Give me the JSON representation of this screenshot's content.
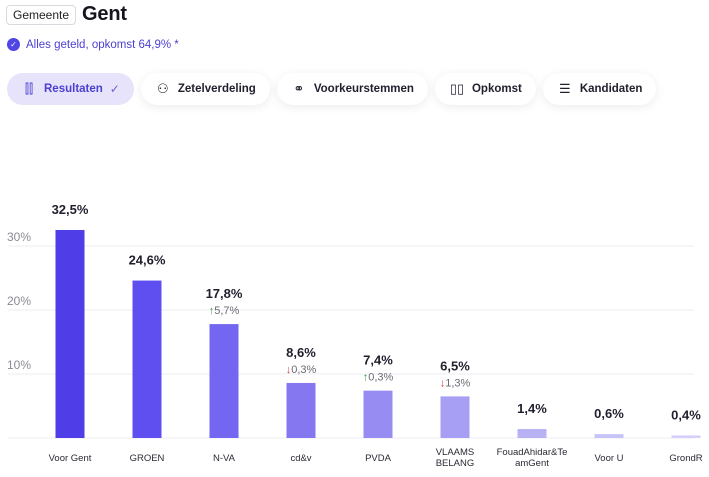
{
  "header": {
    "badge": "Gemeente",
    "title": "Gent"
  },
  "status": {
    "text": "Alles geteld, opkomst 64,9% *"
  },
  "tabs": [
    {
      "label": "Resultaten",
      "icon": "bar-chart-icon",
      "glyph": "⫿⫿",
      "active": true,
      "check": "✓"
    },
    {
      "label": "Zetelverdeling",
      "icon": "seats-icon",
      "glyph": "⚇",
      "active": false
    },
    {
      "label": "Voorkeurstemmen",
      "icon": "people-icon",
      "glyph": "⚭",
      "active": false
    },
    {
      "label": "Opkomst",
      "icon": "map-icon",
      "glyph": "▯▯",
      "active": false
    },
    {
      "label": "Kandidaten",
      "icon": "list-icon",
      "glyph": "☰",
      "active": false
    }
  ],
  "chart_data": {
    "type": "bar",
    "title": "",
    "xlabel": "",
    "ylabel": "",
    "ylim": [
      0,
      35
    ],
    "yticks": [
      10,
      20,
      30
    ],
    "ytick_labels": [
      "10%",
      "20%",
      "30%"
    ],
    "grid": true,
    "categories": [
      "Voor Gent",
      "GROEN",
      "N-VA",
      "cd&v",
      "PVDA",
      "VLAAMS BELANG",
      "FouadAhidar&TeamGent",
      "Voor U",
      "GrondR…"
    ],
    "category_lines": [
      [
        "Voor Gent"
      ],
      [
        "GROEN"
      ],
      [
        "N-VA"
      ],
      [
        "cd&v"
      ],
      [
        "PVDA"
      ],
      [
        "VLAAMS",
        "BELANG"
      ],
      [
        "FouadAhidar&Te",
        "amGent"
      ],
      [
        "Voor U"
      ],
      [
        "GrondR"
      ]
    ],
    "values": [
      32.5,
      24.6,
      17.8,
      8.6,
      7.4,
      6.5,
      1.4,
      0.6,
      0.4
    ],
    "value_labels": [
      "32,5%",
      "24,6%",
      "17,8%",
      "8,6%",
      "7,4%",
      "6,5%",
      "1,4%",
      "0,6%",
      "0,4%"
    ],
    "deltas": [
      null,
      null,
      {
        "dir": "up",
        "text": "5,7%"
      },
      {
        "dir": "down",
        "text": "0,3%"
      },
      {
        "dir": "up",
        "text": "0,3%"
      },
      {
        "dir": "down",
        "text": "1,3%"
      },
      null,
      null,
      null
    ],
    "colors": [
      "#4f3ee8",
      "#604ff0",
      "#7466f0",
      "#8477f0",
      "#978cf1",
      "#a79ff3",
      "#b8b2f5",
      "#c8c3f7",
      "#d4d0f9"
    ],
    "up_color": "#3a9a4a",
    "down_color": "#d9433a"
  }
}
